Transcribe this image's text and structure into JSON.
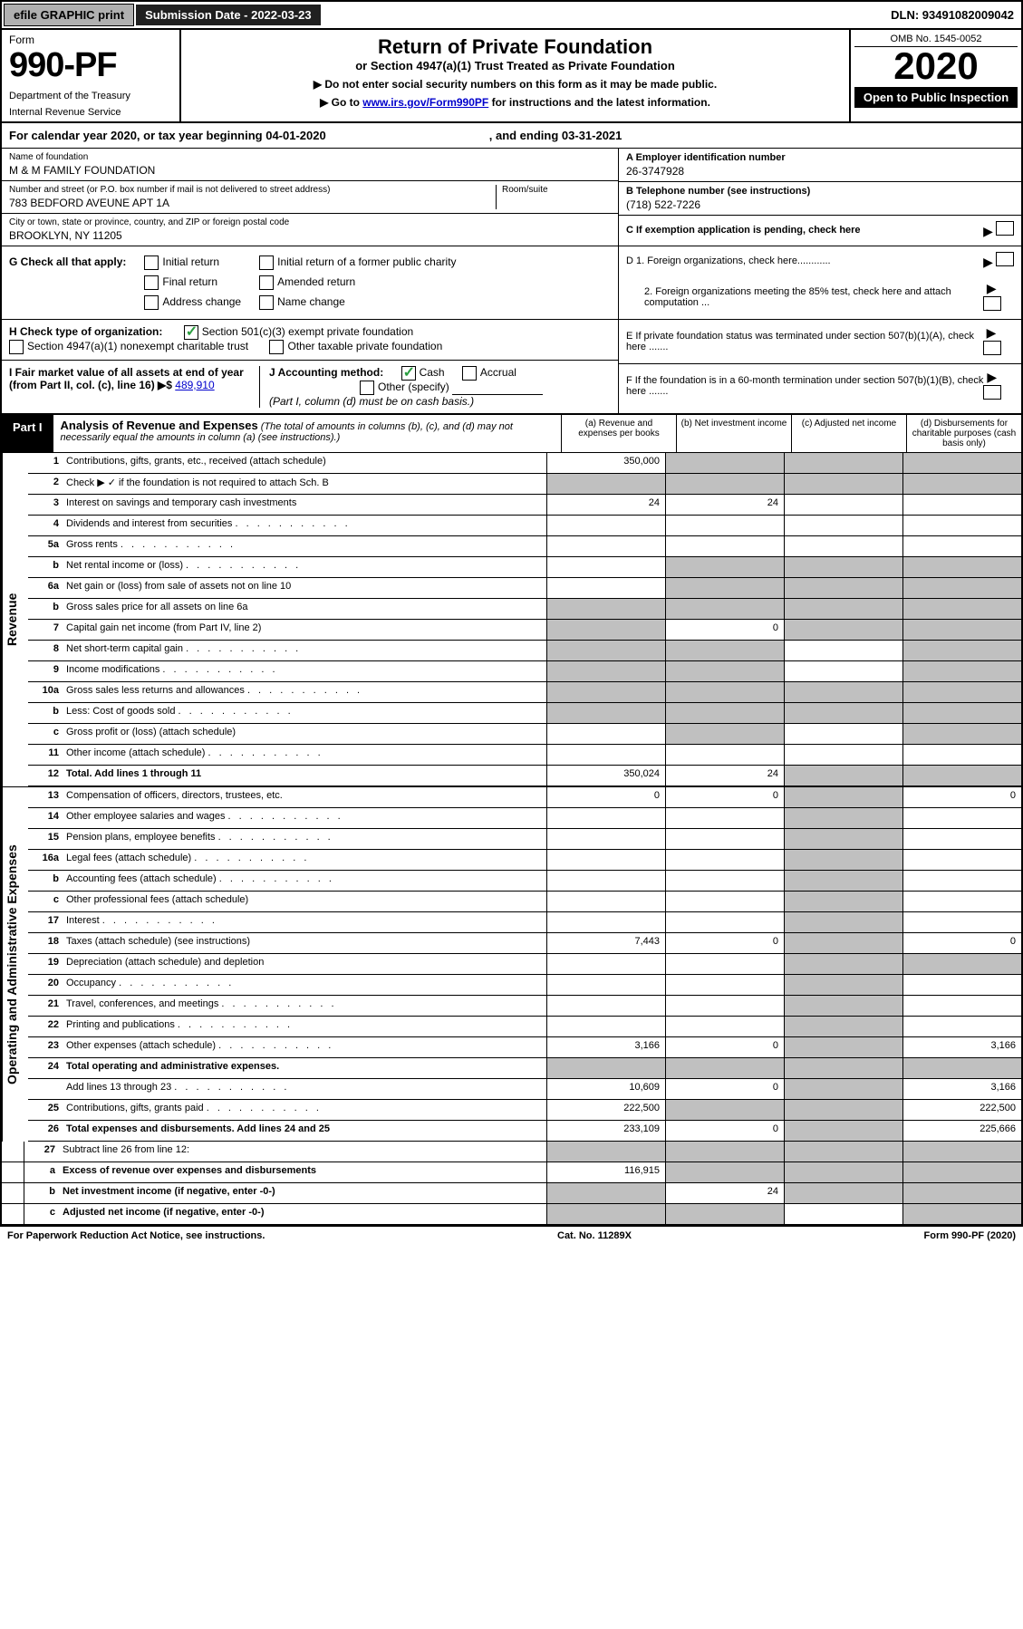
{
  "top": {
    "efile": "efile GRAPHIC print",
    "sub_label": "Submission Date - 2022-03-23",
    "dln": "DLN: 93491082009042"
  },
  "header": {
    "form": "Form",
    "num": "990-PF",
    "dept": "Department of the Treasury",
    "irs": "Internal Revenue Service",
    "title": "Return of Private Foundation",
    "sub": "or Section 4947(a)(1) Trust Treated as Private Foundation",
    "instr1": "▶ Do not enter social security numbers on this form as it may be made public.",
    "instr2_pre": "▶ Go to ",
    "instr2_link": "www.irs.gov/Form990PF",
    "instr2_post": " for instructions and the latest information.",
    "omb": "OMB No. 1545-0052",
    "year": "2020",
    "open": "Open to Public Inspection"
  },
  "cal": {
    "text": "For calendar year 2020, or tax year beginning 04-01-2020",
    "end": ", and ending 03-31-2021"
  },
  "info": {
    "name_label": "Name of foundation",
    "name": "M & M FAMILY FOUNDATION",
    "addr_label": "Number and street (or P.O. box number if mail is not delivered to street address)",
    "addr": "783 BEDFORD AVEUNE APT 1A",
    "room_label": "Room/suite",
    "city_label": "City or town, state or province, country, and ZIP or foreign postal code",
    "city": "BROOKLYN, NY  11205",
    "ein_label": "A Employer identification number",
    "ein": "26-3747928",
    "phone_label": "B Telephone number (see instructions)",
    "phone": "(718) 522-7226",
    "c_label": "C If exemption application is pending, check here",
    "d1": "D 1. Foreign organizations, check here............",
    "d2": "2. Foreign organizations meeting the 85% test, check here and attach computation ...",
    "e": "E  If private foundation status was terminated under section 507(b)(1)(A), check here .......",
    "f": "F  If the foundation is in a 60-month termination under section 507(b)(1)(B), check here .......",
    "g_label": "G Check all that apply:",
    "g_opts": [
      "Initial return",
      "Initial return of a former public charity",
      "Final return",
      "Amended return",
      "Address change",
      "Name change"
    ],
    "h_label": "H Check type of organization:",
    "h_501": "Section 501(c)(3) exempt private foundation",
    "h_4947": "Section 4947(a)(1) nonexempt charitable trust",
    "h_other": "Other taxable private foundation",
    "i_label": "I Fair market value of all assets at end of year (from Part II, col. (c), line 16) ▶$ ",
    "i_val": "489,910",
    "j_label": "J Accounting method:",
    "j_cash": "Cash",
    "j_accrual": "Accrual",
    "j_other": "Other (specify)",
    "j_note": "(Part I, column (d) must be on cash basis.)"
  },
  "part1": {
    "label": "Part I",
    "title": "Analysis of Revenue and Expenses",
    "note": " (The total of amounts in columns (b), (c), and (d) may not necessarily equal the amounts in column (a) (see instructions).)",
    "col_a": "(a) Revenue and expenses per books",
    "col_b": "(b) Net investment income",
    "col_c": "(c) Adjusted net income",
    "col_d": "(d) Disbursements for charitable purposes (cash basis only)"
  },
  "revenue_label": "Revenue",
  "expenses_label": "Operating and Administrative Expenses",
  "lines": {
    "l1": {
      "n": "1",
      "d": "Contributions, gifts, grants, etc., received (attach schedule)",
      "a": "350,000"
    },
    "l2": {
      "n": "2",
      "d": "Check ▶ ✓ if the foundation is not required to attach Sch. B"
    },
    "l3": {
      "n": "3",
      "d": "Interest on savings and temporary cash investments",
      "a": "24",
      "b": "24"
    },
    "l4": {
      "n": "4",
      "d": "Dividends and interest from securities"
    },
    "l5a": {
      "n": "5a",
      "d": "Gross rents"
    },
    "l5b": {
      "n": "b",
      "d": "Net rental income or (loss)"
    },
    "l6a": {
      "n": "6a",
      "d": "Net gain or (loss) from sale of assets not on line 10"
    },
    "l6b": {
      "n": "b",
      "d": "Gross sales price for all assets on line 6a"
    },
    "l7": {
      "n": "7",
      "d": "Capital gain net income (from Part IV, line 2)",
      "b": "0"
    },
    "l8": {
      "n": "8",
      "d": "Net short-term capital gain"
    },
    "l9": {
      "n": "9",
      "d": "Income modifications"
    },
    "l10a": {
      "n": "10a",
      "d": "Gross sales less returns and allowances"
    },
    "l10b": {
      "n": "b",
      "d": "Less: Cost of goods sold"
    },
    "l10c": {
      "n": "c",
      "d": "Gross profit or (loss) (attach schedule)"
    },
    "l11": {
      "n": "11",
      "d": "Other income (attach schedule)"
    },
    "l12": {
      "n": "12",
      "d": "Total. Add lines 1 through 11",
      "a": "350,024",
      "b": "24",
      "bold": true
    },
    "l13": {
      "n": "13",
      "d": "Compensation of officers, directors, trustees, etc.",
      "a": "0",
      "b": "0",
      "dd": "0"
    },
    "l14": {
      "n": "14",
      "d": "Other employee salaries and wages"
    },
    "l15": {
      "n": "15",
      "d": "Pension plans, employee benefits"
    },
    "l16a": {
      "n": "16a",
      "d": "Legal fees (attach schedule)"
    },
    "l16b": {
      "n": "b",
      "d": "Accounting fees (attach schedule)"
    },
    "l16c": {
      "n": "c",
      "d": "Other professional fees (attach schedule)"
    },
    "l17": {
      "n": "17",
      "d": "Interest"
    },
    "l18": {
      "n": "18",
      "d": "Taxes (attach schedule) (see instructions)",
      "a": "7,443",
      "b": "0",
      "dd": "0"
    },
    "l19": {
      "n": "19",
      "d": "Depreciation (attach schedule) and depletion"
    },
    "l20": {
      "n": "20",
      "d": "Occupancy"
    },
    "l21": {
      "n": "21",
      "d": "Travel, conferences, and meetings"
    },
    "l22": {
      "n": "22",
      "d": "Printing and publications"
    },
    "l23": {
      "n": "23",
      "d": "Other expenses (attach schedule)",
      "a": "3,166",
      "b": "0",
      "dd": "3,166"
    },
    "l24": {
      "n": "24",
      "d": "Total operating and administrative expenses.",
      "bold": true
    },
    "l24b": {
      "n": "",
      "d": "Add lines 13 through 23",
      "a": "10,609",
      "b": "0",
      "dd": "3,166"
    },
    "l25": {
      "n": "25",
      "d": "Contributions, gifts, grants paid",
      "a": "222,500",
      "dd": "222,500"
    },
    "l26": {
      "n": "26",
      "d": "Total expenses and disbursements. Add lines 24 and 25",
      "a": "233,109",
      "b": "0",
      "dd": "225,666",
      "bold": true
    },
    "l27": {
      "n": "27",
      "d": "Subtract line 26 from line 12:"
    },
    "l27a": {
      "n": "a",
      "d": "Excess of revenue over expenses and disbursements",
      "a": "116,915",
      "bold": true
    },
    "l27b": {
      "n": "b",
      "d": "Net investment income (if negative, enter -0-)",
      "b": "24",
      "bold": true
    },
    "l27c": {
      "n": "c",
      "d": "Adjusted net income (if negative, enter -0-)",
      "bold": true
    }
  },
  "footer": {
    "paperwork": "For Paperwork Reduction Act Notice, see instructions.",
    "cat": "Cat. No. 11289X",
    "form": "Form 990-PF (2020)"
  }
}
